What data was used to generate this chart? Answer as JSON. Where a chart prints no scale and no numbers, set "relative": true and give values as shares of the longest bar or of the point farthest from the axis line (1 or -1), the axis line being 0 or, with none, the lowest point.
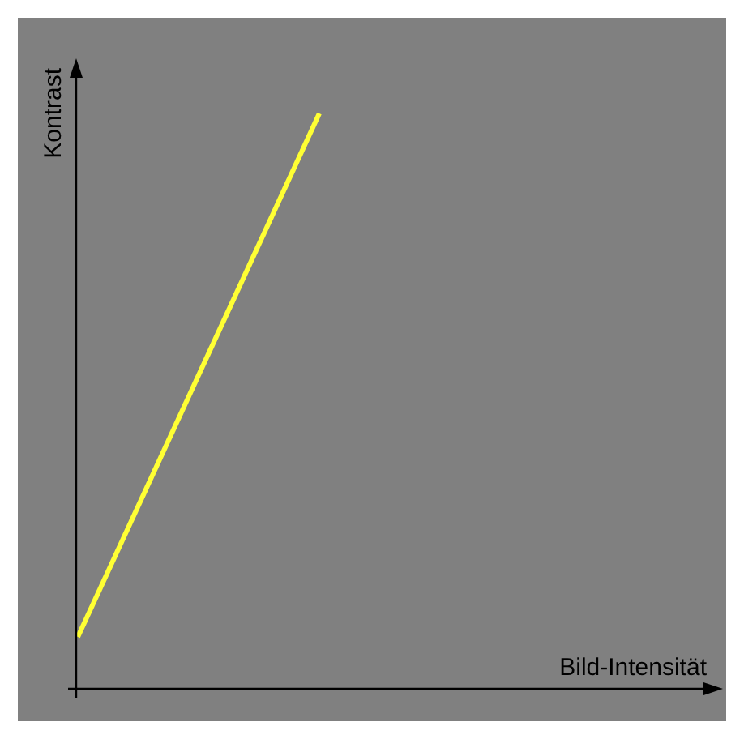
{
  "chart_data": {
    "type": "line",
    "xlabel": "Bild-Intensität",
    "ylabel": "Kontrast",
    "relative": true,
    "categories": [
      null,
      null
    ],
    "tick_labels": false,
    "legend": false,
    "marker": "none",
    "line_style": "solid",
    "series": [
      {
        "color": "#ffff33",
        "values": [
          0.09,
          1
        ]
      }
    ]
  }
}
